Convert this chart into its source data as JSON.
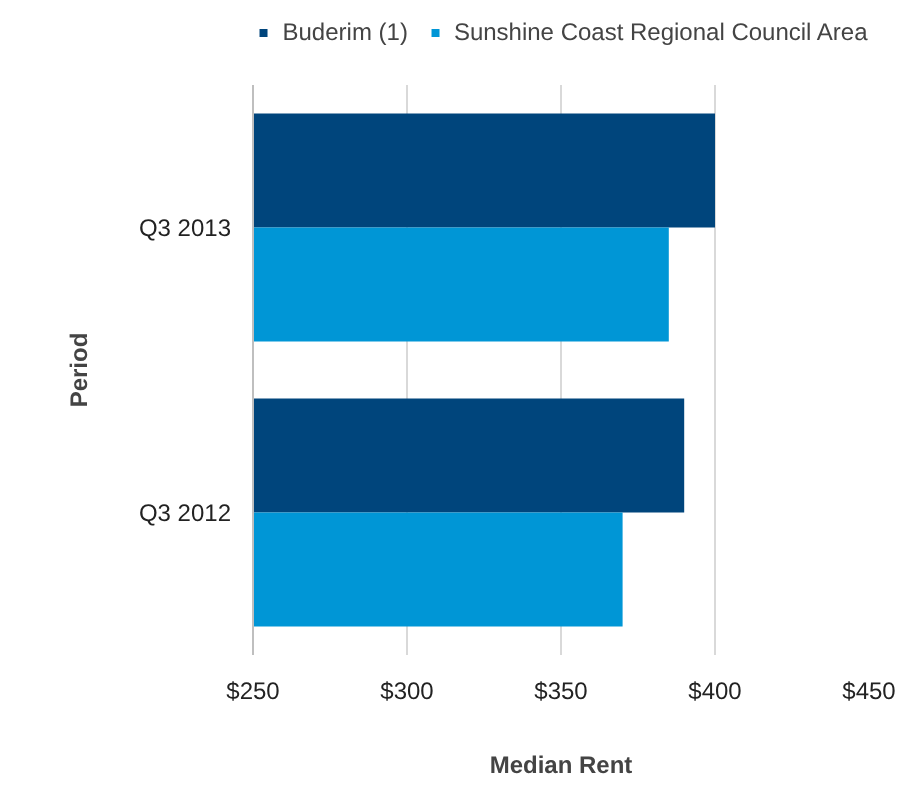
{
  "chart_data": {
    "type": "bar",
    "orientation": "horizontal",
    "xlabel": "Median Rent",
    "ylabel": "Period",
    "categories": [
      "Q3 2013",
      "Q3 2012"
    ],
    "series": [
      {
        "name": "Buderim (1)",
        "color": "#00457c",
        "values": [
          400,
          390
        ]
      },
      {
        "name": "Sunshine Coast Regional Council Area",
        "color": "#0096d6",
        "values": [
          385,
          370
        ]
      }
    ],
    "xlim": [
      250,
      450
    ],
    "xticks": [
      {
        "value": 250,
        "label": "$250"
      },
      {
        "value": 300,
        "label": "$300"
      },
      {
        "value": 350,
        "label": "$350"
      },
      {
        "value": 400,
        "label": "$400"
      },
      {
        "value": 450,
        "label": "$450"
      }
    ],
    "grid": "x",
    "legend": "top"
  }
}
